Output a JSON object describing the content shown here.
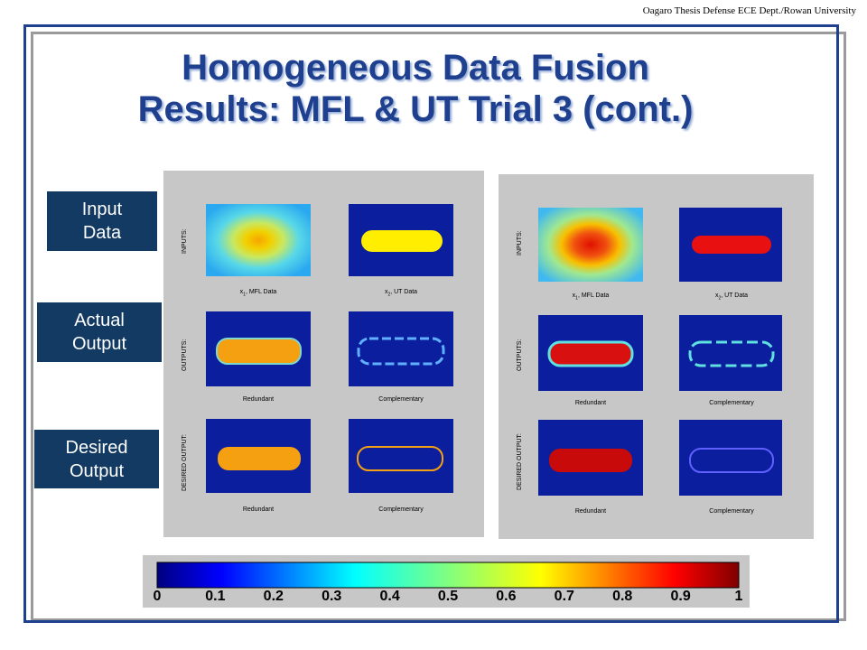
{
  "header_note": "Oagaro Thesis Defense ECE Dept./Rowan University",
  "title_line1": "Homogeneous Data Fusion",
  "title_line2": "Results: MFL & UT Trial 3 (cont.)",
  "side_labels": {
    "input": [
      "Input",
      "Data"
    ],
    "actual": [
      "Actual",
      "Output"
    ],
    "desired": [
      "Desired",
      "Output"
    ]
  },
  "figure": {
    "row_labels": [
      "INPUTS:",
      "OUTPUTS:",
      "DESIRED OUTPUT:"
    ],
    "x1_label": "x",
    "x1_sub": "1",
    "x1_suffix": ", MFL Data",
    "x2_label": "x",
    "x2_sub": "2",
    "x2_suffix": ", UT Data",
    "redundant": "Redundant",
    "complementary": "Complementary"
  },
  "colorbar": {
    "ticks": [
      "0",
      "0.1",
      "0.2",
      "0.3",
      "0.4",
      "0.5",
      "0.6",
      "0.7",
      "0.8",
      "0.9",
      "1"
    ]
  },
  "colors": {
    "title": "#1f3f8f",
    "label_box": "#123a63",
    "background_map": "#0b1e9e"
  }
}
